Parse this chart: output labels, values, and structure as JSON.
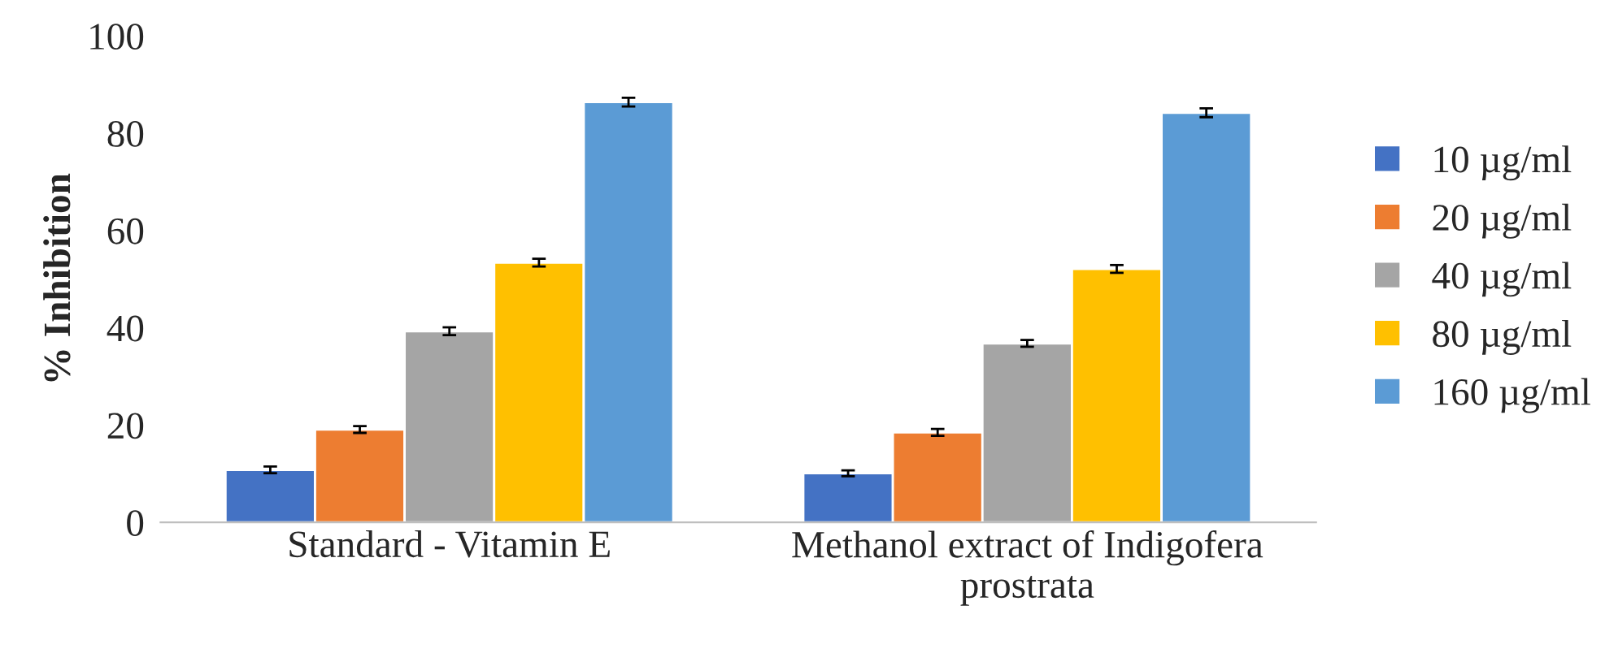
{
  "chart_data": {
    "type": "bar",
    "ylabel": "% Inhibition",
    "categories": [
      "Standard - Vitamin E",
      "Methanol extract of Indigofera\nprostrata"
    ],
    "series": [
      {
        "name": "10 µg/ml",
        "color": "#4472c4",
        "values": [
          10.8,
          10.1
        ],
        "errors": [
          0.7,
          0.6
        ]
      },
      {
        "name": "20 µg/ml",
        "color": "#ed7d31",
        "values": [
          19.1,
          18.5
        ],
        "errors": [
          0.7,
          0.7
        ]
      },
      {
        "name": "40 µg/ml",
        "color": "#a5a5a5",
        "values": [
          39.3,
          36.8
        ],
        "errors": [
          0.8,
          0.7
        ]
      },
      {
        "name": "80 µg/ml",
        "color": "#ffc000",
        "values": [
          53.4,
          52.1
        ],
        "errors": [
          0.8,
          0.8
        ]
      },
      {
        "name": "160 µg/ml",
        "color": "#5b9bd5",
        "values": [
          86.4,
          84.2
        ],
        "errors": [
          0.9,
          0.9
        ]
      }
    ],
    "ylim": [
      0,
      100
    ],
    "yticks": [
      0,
      20,
      40,
      60,
      80,
      100
    ],
    "grid": false,
    "legend": "right"
  }
}
